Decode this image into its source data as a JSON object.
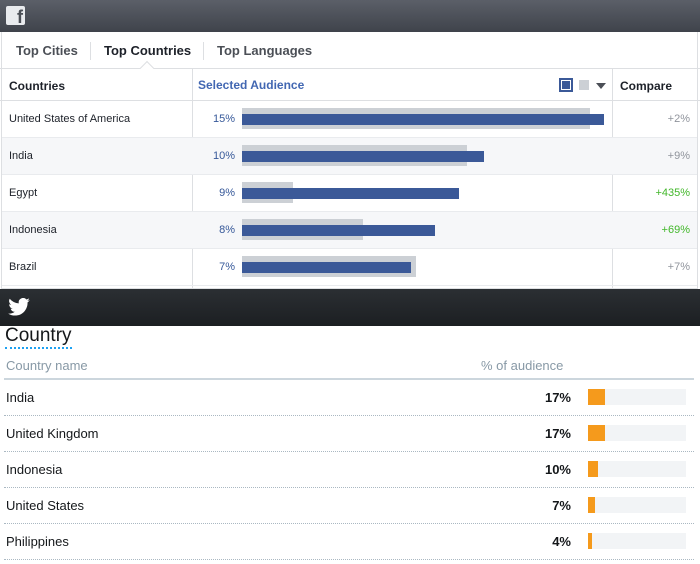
{
  "facebook": {
    "tabs": [
      "Top Cities",
      "Top Countries",
      "Top Languages"
    ],
    "active_tab": 1,
    "columns": [
      "Countries",
      "Selected Audience",
      "Compare"
    ],
    "bar_color": "#3b5998",
    "baseline_color": "#ccd0d5",
    "rows": [
      {
        "country": "United States of America",
        "audience": 15,
        "audience_label": "15%",
        "baseline": 14.4,
        "compare": "+2%",
        "compare_color": "#90949c"
      },
      {
        "country": "India",
        "audience": 10,
        "audience_label": "10%",
        "baseline": 9.3,
        "compare": "+9%",
        "compare_color": "#90949c"
      },
      {
        "country": "Egypt",
        "audience": 9,
        "audience_label": "9%",
        "baseline": 2.1,
        "compare": "+435%",
        "compare_color": "#42b72a"
      },
      {
        "country": "Indonesia",
        "audience": 8,
        "audience_label": "8%",
        "baseline": 5,
        "compare": "+69%",
        "compare_color": "#42b72a"
      },
      {
        "country": "Brazil",
        "audience": 7,
        "audience_label": "7%",
        "baseline": 7.2,
        "compare": "+7%",
        "compare_color": "#90949c"
      }
    ]
  },
  "twitter": {
    "title": "Country",
    "columns": [
      "Country name",
      "% of audience"
    ],
    "bar_color": "#f59a1c",
    "track_color": "#f2f4f6",
    "rows": [
      {
        "country": "India",
        "value": 17,
        "label": "17%"
      },
      {
        "country": "United Kingdom",
        "value": 17,
        "label": "17%"
      },
      {
        "country": "Indonesia",
        "value": 10,
        "label": "10%"
      },
      {
        "country": "United States",
        "value": 7,
        "label": "7%"
      },
      {
        "country": "Philippines",
        "value": 4,
        "label": "4%"
      }
    ]
  }
}
